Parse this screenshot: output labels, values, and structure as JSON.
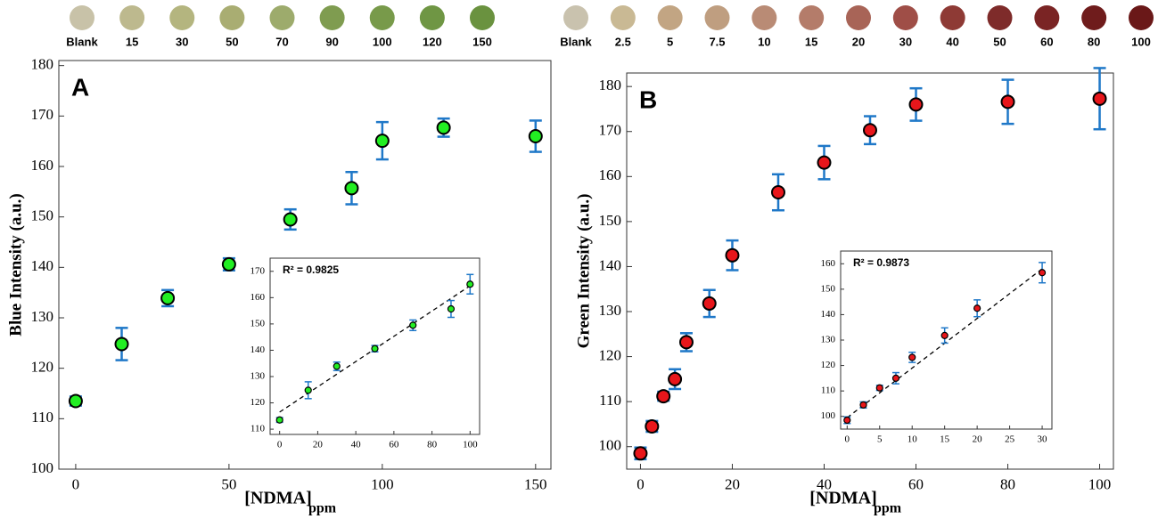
{
  "chart_data": [
    {
      "type": "scatter",
      "panel_label": "A",
      "swatch_labels": [
        "Blank",
        "15",
        "30",
        "50",
        "70",
        "90",
        "100",
        "120",
        "150"
      ],
      "swatch_colors": [
        "#c8c2a8",
        "#bdb98e",
        "#b4b57f",
        "#a9ad72",
        "#9dab6c",
        "#7f9c50",
        "#789a4a",
        "#6f9644",
        "#6a923f"
      ],
      "y_label": "Blue Intensity (a.u.)",
      "x_label": "[NDMA]",
      "x_label_subscript": "ppm",
      "x": [
        0,
        15,
        30,
        50,
        70,
        90,
        100,
        120,
        150
      ],
      "values": [
        113.5,
        124.8,
        133.9,
        140.6,
        149.5,
        155.7,
        165.1,
        167.7,
        166.0
      ],
      "errors": [
        0.9,
        3.2,
        1.6,
        1.2,
        2.0,
        3.2,
        3.7,
        1.8,
        3.1
      ],
      "color": "#22ee22",
      "error_color": "#1f78c8",
      "xlim": [
        -5.5,
        155
      ],
      "ylim": [
        100,
        181
      ],
      "xticks": [
        0,
        50,
        100,
        150
      ],
      "yticks": [
        100,
        110,
        120,
        130,
        140,
        150,
        160,
        170,
        180
      ],
      "inset": {
        "type": "scatter",
        "annotation": "R² = 0.9825",
        "x": [
          0,
          15,
          30,
          50,
          70,
          90,
          100
        ],
        "values": [
          113.5,
          124.8,
          133.9,
          140.6,
          149.5,
          155.7,
          165.1
        ],
        "errors": [
          0.9,
          3.2,
          1.6,
          1.2,
          2.0,
          3.2,
          3.7
        ],
        "fit_x": [
          0,
          100
        ],
        "fit_y": [
          116.5,
          164.5
        ],
        "xlim": [
          -5,
          105
        ],
        "ylim": [
          108,
          175
        ],
        "xticks": [
          0,
          20,
          40,
          60,
          80,
          100
        ],
        "yticks": [
          110,
          120,
          130,
          140,
          150,
          160,
          170
        ]
      }
    },
    {
      "type": "scatter",
      "panel_label": "B",
      "swatch_labels": [
        "Blank",
        "2.5",
        "5",
        "7.5",
        "10",
        "15",
        "20",
        "30",
        "40",
        "50",
        "60",
        "80",
        "100"
      ],
      "swatch_colors": [
        "#c9c2ae",
        "#c9b994",
        "#c2a583",
        "#bf9e80",
        "#b98b75",
        "#b47c6a",
        "#a86457",
        "#9f4e47",
        "#8e3a35",
        "#7e2b2a",
        "#7a2424",
        "#6f1c1c",
        "#6a1818"
      ],
      "y_label": "Green Intensity (a.u.)",
      "x_label": "[NDMA]",
      "x_label_subscript": "ppm",
      "x": [
        0,
        2.5,
        5,
        7.5,
        10,
        15,
        20,
        30,
        40,
        50,
        60,
        80,
        100
      ],
      "values": [
        98.5,
        104.5,
        111.2,
        115.0,
        123.2,
        131.8,
        142.5,
        156.5,
        163.1,
        170.3,
        176.0,
        176.6,
        177.3
      ],
      "errors": [
        1.3,
        1.2,
        1.0,
        2.2,
        2.0,
        3.0,
        3.3,
        4.0,
        3.7,
        3.1,
        3.6,
        4.9,
        6.8
      ],
      "color": "#e8161b",
      "error_color": "#1f78c8",
      "xlim": [
        -3,
        103
      ],
      "ylim": [
        95,
        183
      ],
      "xticks": [
        0,
        20,
        40,
        60,
        80,
        100
      ],
      "yticks": [
        100,
        110,
        120,
        130,
        140,
        150,
        160,
        170,
        180
      ],
      "inset": {
        "type": "scatter",
        "annotation": "R² = 0.9873",
        "x": [
          0,
          2.5,
          5,
          7.5,
          10,
          15,
          20,
          30
        ],
        "values": [
          98.5,
          104.5,
          111.2,
          115.0,
          123.2,
          131.8,
          142.5,
          156.5
        ],
        "errors": [
          1.3,
          1.2,
          1.0,
          2.2,
          2.0,
          3.0,
          3.3,
          4.0
        ],
        "fit_x": [
          0,
          30
        ],
        "fit_y": [
          99.5,
          158
        ],
        "xlim": [
          -1,
          31.5
        ],
        "ylim": [
          95,
          165
        ],
        "xticks": [
          0,
          5,
          10,
          15,
          20,
          25,
          30
        ],
        "yticks": [
          100,
          110,
          120,
          130,
          140,
          150,
          160
        ]
      }
    }
  ]
}
